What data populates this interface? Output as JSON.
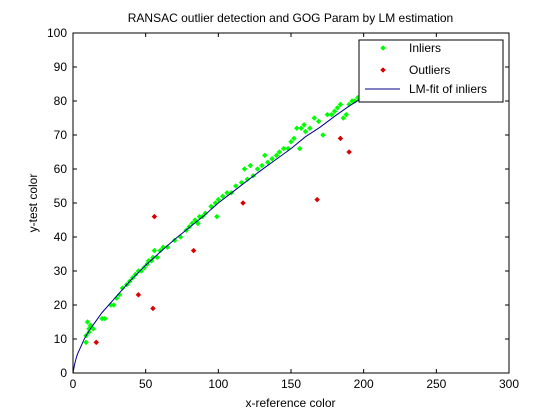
{
  "chart_data": {
    "type": "scatter",
    "title": "RANSAC outlier detection and GOG Param by LM estimation",
    "xlabel": "x-reference color",
    "ylabel": "y-test color",
    "xlim": [
      0,
      300
    ],
    "ylim": [
      0,
      100
    ],
    "xticks": [
      "0",
      "50",
      "100",
      "150",
      "200",
      "250",
      "300"
    ],
    "yticks": [
      "0",
      "10",
      "20",
      "30",
      "40",
      "50",
      "60",
      "70",
      "80",
      "90",
      "100"
    ],
    "grid": false,
    "legend_position": "top-right",
    "series": [
      {
        "name": "Inliers",
        "color": "#00ff00",
        "marker": "diamond",
        "points": [
          [
            9,
            9
          ],
          [
            9,
            11
          ],
          [
            10,
            15
          ],
          [
            11,
            12
          ],
          [
            11,
            13
          ],
          [
            12,
            14
          ],
          [
            14,
            13
          ],
          [
            20,
            16
          ],
          [
            22,
            16
          ],
          [
            26,
            20
          ],
          [
            28,
            20
          ],
          [
            30,
            22
          ],
          [
            32,
            23
          ],
          [
            34,
            25
          ],
          [
            37,
            26
          ],
          [
            39,
            27
          ],
          [
            41,
            28
          ],
          [
            43,
            29
          ],
          [
            45,
            30
          ],
          [
            47,
            30
          ],
          [
            49,
            31
          ],
          [
            51,
            32
          ],
          [
            52,
            33
          ],
          [
            54,
            33
          ],
          [
            55,
            34
          ],
          [
            56,
            36
          ],
          [
            58,
            34
          ],
          [
            60,
            36
          ],
          [
            62,
            37
          ],
          [
            65,
            37
          ],
          [
            70,
            39
          ],
          [
            74,
            40
          ],
          [
            78,
            42
          ],
          [
            80,
            43
          ],
          [
            82,
            44
          ],
          [
            84,
            45
          ],
          [
            86,
            44
          ],
          [
            87,
            46
          ],
          [
            89,
            46
          ],
          [
            91,
            47
          ],
          [
            95,
            49
          ],
          [
            98,
            50
          ],
          [
            99,
            46
          ],
          [
            100,
            51
          ],
          [
            103,
            52
          ],
          [
            106,
            53
          ],
          [
            109,
            53
          ],
          [
            112,
            55
          ],
          [
            116,
            56
          ],
          [
            118,
            60
          ],
          [
            120,
            57
          ],
          [
            122,
            61
          ],
          [
            124,
            58
          ],
          [
            127,
            60
          ],
          [
            130,
            61
          ],
          [
            132,
            64
          ],
          [
            134,
            62
          ],
          [
            137,
            63
          ],
          [
            140,
            64
          ],
          [
            142,
            65
          ],
          [
            145,
            66
          ],
          [
            148,
            66
          ],
          [
            150,
            68
          ],
          [
            152,
            69
          ],
          [
            154,
            72
          ],
          [
            156,
            66
          ],
          [
            157,
            72
          ],
          [
            159,
            73
          ],
          [
            160,
            71
          ],
          [
            163,
            72
          ],
          [
            166,
            75
          ],
          [
            169,
            74
          ],
          [
            172,
            70
          ],
          [
            175,
            76
          ],
          [
            178,
            76
          ],
          [
            180,
            77
          ],
          [
            182,
            78
          ],
          [
            184,
            79
          ],
          [
            186,
            75
          ],
          [
            188,
            76
          ],
          [
            190,
            79
          ],
          [
            192,
            80
          ],
          [
            194,
            80
          ],
          [
            196,
            81
          ]
        ]
      },
      {
        "name": "Outliers",
        "color": "#dd0000",
        "marker": "diamond",
        "points": [
          [
            16,
            9
          ],
          [
            45,
            23
          ],
          [
            55,
            19
          ],
          [
            56,
            46
          ],
          [
            83,
            36
          ],
          [
            117,
            50
          ],
          [
            168,
            51
          ],
          [
            184,
            69
          ],
          [
            190,
            65
          ]
        ]
      },
      {
        "name": "LM-fit of inliers",
        "color": "#00008b",
        "marker": "line",
        "points": [
          [
            0,
            0
          ],
          [
            1,
            2.4
          ],
          [
            2,
            4.1
          ],
          [
            3,
            5.5
          ],
          [
            5,
            7.4
          ],
          [
            8,
            10.2
          ],
          [
            12,
            13
          ],
          [
            20,
            17.8
          ],
          [
            30,
            22.6
          ],
          [
            40,
            27.4
          ],
          [
            50,
            31.7
          ],
          [
            60,
            35.6
          ],
          [
            70,
            39.3
          ],
          [
            80,
            42.8
          ],
          [
            90,
            46.2
          ],
          [
            100,
            50
          ],
          [
            110,
            53.3
          ],
          [
            120,
            56.6
          ],
          [
            130,
            59.8
          ],
          [
            140,
            62.9
          ],
          [
            150,
            66
          ],
          [
            160,
            69.5
          ],
          [
            170,
            72.3
          ],
          [
            180,
            75.5
          ],
          [
            190,
            78.5
          ],
          [
            200,
            81.2
          ]
        ]
      }
    ]
  }
}
